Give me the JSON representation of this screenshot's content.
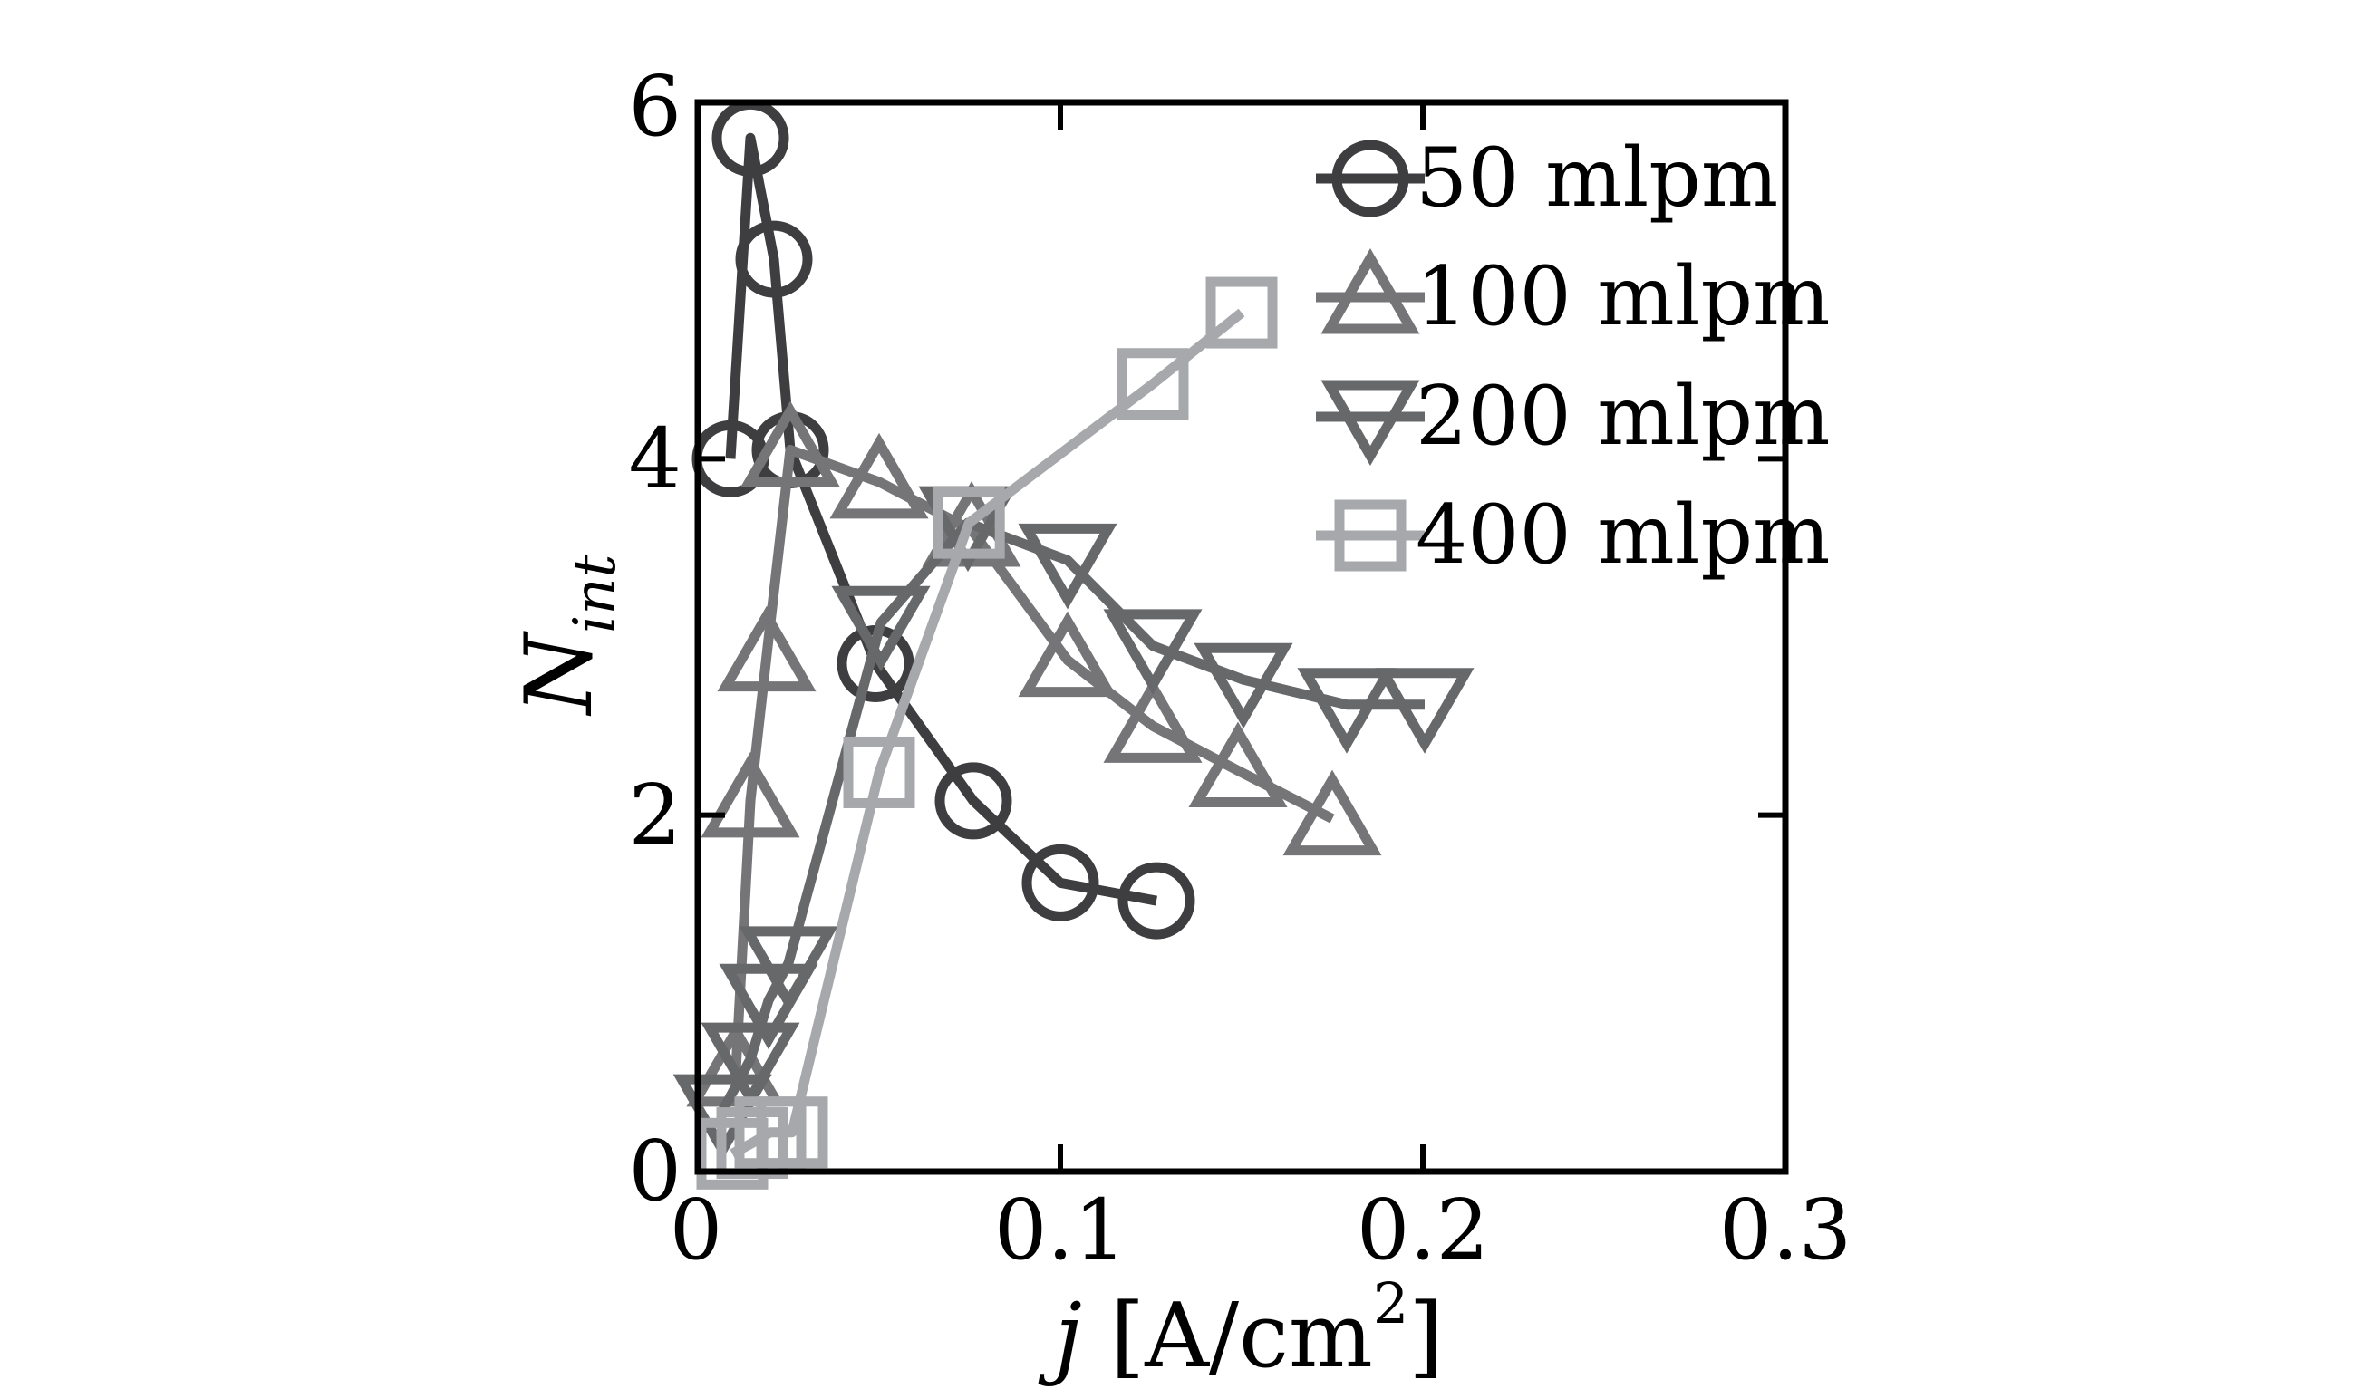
{
  "figure": {
    "background": "#ffffff",
    "frame_color": "#000000",
    "xlabel": {
      "variable": "j",
      "bracket_open": " [A/cm",
      "exponent": "2",
      "bracket_close": "]"
    },
    "ylabel": {
      "variable": "N",
      "subscript": "int"
    }
  },
  "chart_data": {
    "type": "line",
    "title": "",
    "xlabel": "j [A/cm^2]",
    "ylabel": "N_int",
    "xlim": [
      0,
      0.3
    ],
    "ylim": [
      0,
      6
    ],
    "x_ticks": [
      0,
      0.1,
      0.2,
      0.3
    ],
    "x_tick_labels": [
      "0",
      "0.1",
      "0.2",
      "0.3"
    ],
    "y_ticks": [
      0,
      2,
      4,
      6
    ],
    "y_tick_labels": [
      "0",
      "2",
      "4",
      "6"
    ],
    "grid": false,
    "legend_position": "inside-top-right",
    "marker_style": "hollow",
    "series": [
      {
        "name": "50 mlpm",
        "marker": "circle",
        "color": "#3e3e40",
        "points": [
          [
            0.009,
            4.0
          ],
          [
            0.0145,
            5.8
          ],
          [
            0.021,
            5.12
          ],
          [
            0.0255,
            4.05
          ],
          [
            0.049,
            2.85
          ],
          [
            0.076,
            2.08
          ],
          [
            0.1,
            1.62
          ],
          [
            0.1265,
            1.52
          ]
        ]
      },
      {
        "name": "100 mlpm",
        "marker": "triangle-up",
        "color": "#757578",
        "points": [
          [
            0.0105,
            0.57
          ],
          [
            0.0145,
            2.08
          ],
          [
            0.019,
            2.9
          ],
          [
            0.0255,
            4.05
          ],
          [
            0.05,
            3.87
          ],
          [
            0.0755,
            3.6
          ],
          [
            0.102,
            2.87
          ],
          [
            0.1255,
            2.5
          ],
          [
            0.149,
            2.25
          ],
          [
            0.175,
            1.98
          ]
        ]
      },
      {
        "name": "200 mlpm",
        "marker": "triangle-down",
        "color": "#67686a",
        "points": [
          [
            0.0068,
            0.34
          ],
          [
            0.0145,
            0.63
          ],
          [
            0.0195,
            0.96
          ],
          [
            0.025,
            1.17
          ],
          [
            0.0505,
            3.08
          ],
          [
            0.0745,
            3.64
          ],
          [
            0.102,
            3.43
          ],
          [
            0.1255,
            2.95
          ],
          [
            0.1505,
            2.76
          ],
          [
            0.179,
            2.62
          ],
          [
            0.2005,
            2.62
          ]
        ]
      },
      {
        "name": "400 mlpm",
        "marker": "square",
        "color": "#a6a8ab",
        "points": [
          [
            0.0095,
            0.1
          ],
          [
            0.015,
            0.16
          ],
          [
            0.02,
            0.22
          ],
          [
            0.026,
            0.22
          ],
          [
            0.05,
            2.24
          ],
          [
            0.0748,
            3.64
          ],
          [
            0.1255,
            4.42
          ],
          [
            0.15,
            4.82
          ]
        ]
      }
    ]
  }
}
